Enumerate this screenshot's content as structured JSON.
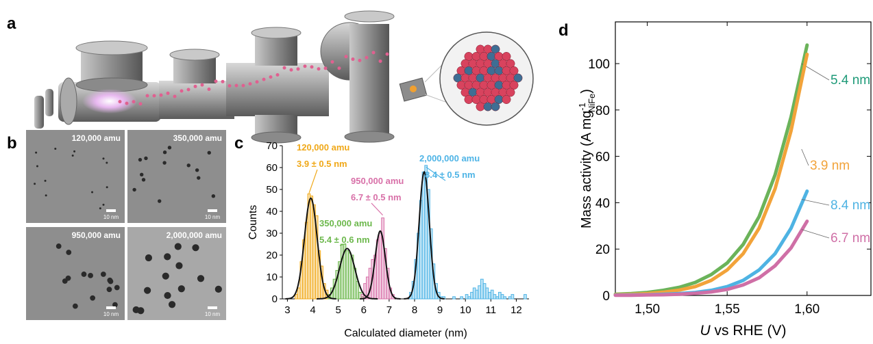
{
  "panel_labels": [
    "a",
    "b",
    "c",
    "d"
  ],
  "tem_images": [
    {
      "label": "120,000 amu",
      "scale": "10 nm"
    },
    {
      "label": "350,000 amu",
      "scale": "10 nm"
    },
    {
      "label": "950,000 amu",
      "scale": "10 nm"
    },
    {
      "label": "2,000,000 amu",
      "scale": "10 nm"
    }
  ],
  "chart_data": [
    {
      "type": "histogram",
      "x_label": "Calculated diameter (nm)",
      "y_label": "Counts",
      "xlim": [
        2.8,
        12.5
      ],
      "ylim": [
        0,
        70
      ],
      "xticks": [
        3,
        4,
        5,
        6,
        7,
        8,
        9,
        10,
        11,
        12
      ],
      "yticks": [
        0,
        10,
        20,
        30,
        40,
        50,
        60,
        70
      ],
      "fit_color": "#111111",
      "series": [
        {
          "name": "120,000 amu",
          "annotation": "3.9 ± 0.5 nm",
          "color": "#f0a818",
          "bins": [
            3.3,
            3.4,
            3.5,
            3.6,
            3.7,
            3.8,
            3.9,
            4.0,
            4.1,
            4.2,
            4.3,
            4.4,
            4.5,
            4.6,
            4.7
          ],
          "counts": [
            2,
            5,
            17,
            27,
            35,
            48,
            47,
            43,
            38,
            22,
            15,
            7,
            4,
            2
          ],
          "fit": {
            "center": 3.92,
            "amplitude": 46,
            "sigma": 0.25
          }
        },
        {
          "name": "350,000 amu",
          "annotation": "5.4 ± 0.6 nm",
          "color": "#6cb84c",
          "bins": [
            4.6,
            4.7,
            4.8,
            4.9,
            5.0,
            5.1,
            5.2,
            5.3,
            5.4,
            5.5,
            5.6,
            5.7,
            5.8,
            5.9,
            6.0
          ],
          "counts": [
            2,
            5,
            9,
            13,
            17,
            25,
            25,
            22,
            21,
            20,
            14,
            8,
            3,
            1
          ],
          "fit": {
            "center": 5.35,
            "amplitude": 23,
            "sigma": 0.3
          }
        },
        {
          "name": "950,000 amu",
          "annotation": "6.7 ± 0.5 nm",
          "color": "#d870a8",
          "bins": [
            5.9,
            6.0,
            6.1,
            6.2,
            6.3,
            6.4,
            6.5,
            6.6,
            6.7,
            6.8,
            6.9,
            7.0,
            7.1,
            7.2
          ],
          "counts": [
            2,
            7,
            10,
            14,
            18,
            20,
            27,
            30,
            37,
            23,
            14,
            5,
            2
          ],
          "fit": {
            "center": 6.65,
            "amplitude": 31,
            "sigma": 0.2
          }
        },
        {
          "name": "2,000,000 amu",
          "annotation": "8.4 ± 0.5 nm",
          "color": "#4eb4e6",
          "bins": [
            7.8,
            7.9,
            8.0,
            8.1,
            8.2,
            8.3,
            8.4,
            8.5,
            8.6,
            8.7,
            8.8,
            8.9,
            9.0,
            9.1,
            9.2,
            9.3,
            9.4,
            9.5,
            9.6,
            9.7,
            9.8,
            9.9,
            10.0,
            10.1,
            10.2,
            10.3,
            10.4,
            10.5,
            10.6,
            10.7,
            10.8,
            10.9,
            11.0,
            11.1,
            11.2,
            11.3,
            11.4,
            11.5,
            11.6,
            11.7,
            11.8,
            11.9,
            12.0,
            12.1,
            12.2,
            12.3,
            12.4
          ],
          "counts": [
            3,
            8,
            18,
            30,
            45,
            58,
            61,
            50,
            32,
            16,
            7,
            3,
            1,
            1,
            0,
            0,
            0,
            1,
            0,
            0,
            1,
            0,
            2,
            1,
            3,
            5,
            4,
            6,
            9,
            7,
            5,
            3,
            4,
            2,
            1,
            3,
            2,
            1,
            0,
            1,
            2,
            0,
            0,
            0,
            0,
            2
          ],
          "fit": {
            "center": 8.38,
            "amplitude": 58,
            "sigma": 0.2
          }
        }
      ]
    },
    {
      "type": "line",
      "x_label": [
        "U",
        " vs RHE (V)"
      ],
      "y_label": [
        "Mass activity (A mg",
        "-1",
        "NiFe",
        ")"
      ],
      "xlim": [
        1.48,
        1.64
      ],
      "ylim": [
        0,
        118
      ],
      "xticks": [
        {
          "value": 1.5,
          "label": "1,50"
        },
        {
          "value": 1.55,
          "label": "1,55"
        },
        {
          "value": 1.6,
          "label": "1,60"
        }
      ],
      "yticks": [
        0,
        20,
        40,
        60,
        80,
        100
      ],
      "x": [
        1.48,
        1.49,
        1.5,
        1.51,
        1.52,
        1.53,
        1.54,
        1.55,
        1.56,
        1.57,
        1.58,
        1.59,
        1.6
      ],
      "series": [
        {
          "name": "5.4 nm",
          "color": "#6bb35a",
          "label_color": "#1e9a78",
          "values": [
            0.5,
            0.8,
            1.3,
            2.2,
            3.5,
            5.6,
            9,
            14,
            22,
            34,
            52,
            77,
            108
          ]
        },
        {
          "name": "3.9 nm",
          "color": "#f2a33a",
          "label_color": "#f2a33a",
          "values": [
            0.3,
            0.5,
            0.8,
            1.4,
            2.3,
            3.8,
            6.5,
            11,
            18,
            29,
            46,
            71,
            104
          ]
        },
        {
          "name": "8.4 nm",
          "color": "#4eb3e3",
          "label_color": "#4eb3e3",
          "values": [
            0.15,
            0.2,
            0.3,
            0.5,
            0.8,
            1.3,
            2.2,
            3.8,
            6.5,
            11,
            18,
            29,
            45
          ]
        },
        {
          "name": "6.7 nm",
          "color": "#cf6fa6",
          "label_color": "#cf6fa6",
          "values": [
            0.1,
            0.1,
            0.2,
            0.3,
            0.5,
            0.9,
            1.5,
            2.6,
            4.5,
            7.6,
            12.8,
            20.5,
            32
          ]
        }
      ]
    }
  ]
}
